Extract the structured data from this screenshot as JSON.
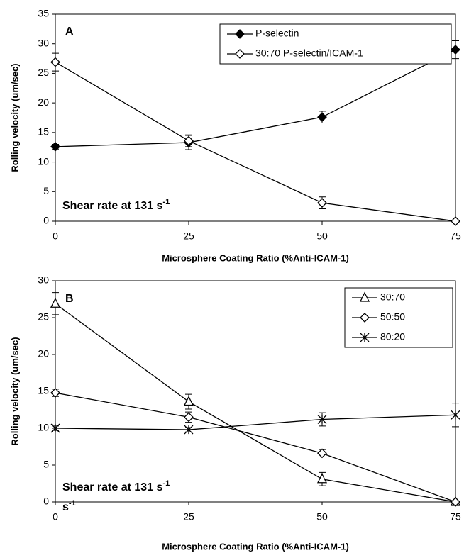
{
  "chart_data": [
    {
      "type": "line",
      "panel_label": "A",
      "annotation": {
        "text": "Shear rate at 131 s",
        "sup": "-1"
      },
      "x_label": "Microsphere Coating Ratio (%Anti-ICAM-1)",
      "y_label": "Rolling velocity (um/sec)",
      "x": [
        0,
        25,
        50,
        75
      ],
      "xlim": [
        0,
        75
      ],
      "xticks": [
        0,
        25,
        50,
        75
      ],
      "ylim": [
        0,
        35
      ],
      "yticks": [
        0,
        5,
        10,
        15,
        20,
        25,
        30,
        35
      ],
      "series": [
        {
          "name": "P-selectin",
          "color": "#000000",
          "marker": "diamond-filled",
          "values": [
            12.6,
            13.3,
            17.6,
            29.0
          ],
          "errors": [
            0.4,
            1.2,
            1.0,
            1.5
          ]
        },
        {
          "name": "30:70 P-selectin/ICAM-1",
          "color": "#000000",
          "marker": "diamond-open",
          "values": [
            26.9,
            13.6,
            3.1,
            0
          ],
          "errors": [
            1.5,
            1.0,
            1.0,
            0
          ]
        }
      ]
    },
    {
      "type": "line",
      "panel_label": "B",
      "annotation": {
        "text": "Shear rate at 131  s",
        "sup": "-1"
      },
      "annotation2": {
        "text": "s",
        "sup": "-1"
      },
      "x_label": "Microsphere Coating Ratio (%Anti-ICAM-1)",
      "y_label": "Rolling velocity (um/sec)",
      "x": [
        0,
        25,
        50,
        75
      ],
      "xlim": [
        0,
        75
      ],
      "xticks": [
        0,
        25,
        50,
        75
      ],
      "ylim": [
        0,
        30
      ],
      "yticks": [
        0,
        5,
        10,
        15,
        20,
        25,
        30
      ],
      "series": [
        {
          "name": "30:70",
          "color": "#000000",
          "marker": "triangle-open",
          "values": [
            26.9,
            13.6,
            3.1,
            0
          ],
          "errors": [
            1.5,
            1.0,
            0.9,
            0
          ]
        },
        {
          "name": "50:50",
          "color": "#000000",
          "marker": "diamond-open",
          "values": [
            14.8,
            11.5,
            6.6,
            0
          ],
          "errors": [
            0.5,
            0.7,
            0.5,
            0
          ]
        },
        {
          "name": "80:20",
          "color": "#000000",
          "marker": "asterisk",
          "values": [
            10.0,
            9.8,
            11.2,
            11.8
          ],
          "errors": [
            0.3,
            0.3,
            0.9,
            1.6
          ]
        }
      ]
    }
  ]
}
